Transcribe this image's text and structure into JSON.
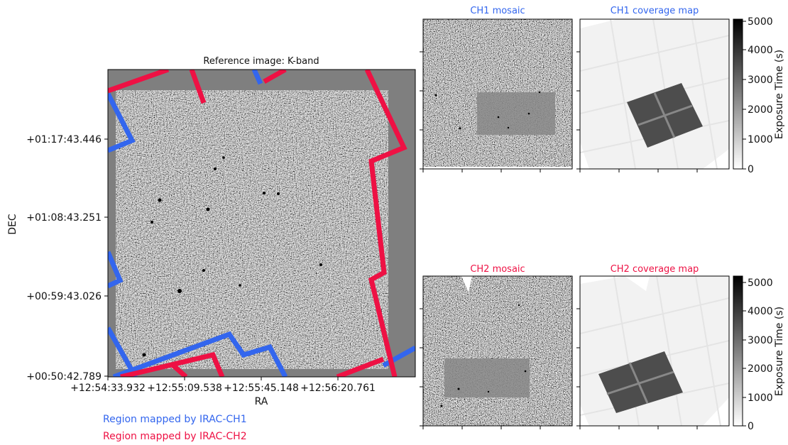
{
  "colors": {
    "ch1": "#3366ee",
    "ch2": "#ee1144",
    "panel_bg": "#7f7f7f",
    "coverage_bg": "#ffffff"
  },
  "legend": {
    "ch1": "Region mapped by IRAC-CH1",
    "ch2": "Region mapped by IRAC-CH2"
  },
  "chart_data": [
    {
      "type": "heatmap",
      "title": "Reference image: K-band",
      "xlabel": "RA",
      "ylabel": "DEC",
      "x_ticks": [
        "+12:54:33.932",
        "+12:55:09.538",
        "+12:55:45.148",
        "+12:56:20.761"
      ],
      "y_ticks": [
        "+01:17:43.446",
        "+01:08:43.251",
        "+00:59:43.026",
        "+00:50:42.789"
      ],
      "colormap": "gray",
      "overlays": [
        {
          "name": "Region mapped by IRAC-CH1",
          "color": "#3366ee"
        },
        {
          "name": "Region mapped by IRAC-CH2",
          "color": "#ee1144"
        }
      ]
    },
    {
      "type": "heatmap",
      "title": "CH1 mosaic",
      "title_color": "#3366ee",
      "colormap": "gray"
    },
    {
      "type": "heatmap",
      "title": "CH1 coverage map",
      "title_color": "#3366ee",
      "colormap": "gray_r",
      "colorbar": {
        "label": "Exposure Time (s)",
        "range": [
          0,
          5000
        ],
        "ticks": [
          "0",
          "1000",
          "2000",
          "3000",
          "4000",
          "5000"
        ]
      }
    },
    {
      "type": "heatmap",
      "title": "CH2 mosaic",
      "title_color": "#ee1144",
      "colormap": "gray"
    },
    {
      "type": "heatmap",
      "title": "CH2 coverage map",
      "title_color": "#ee1144",
      "colormap": "gray_r",
      "colorbar": {
        "label": "Exposure Time (s)",
        "range": [
          0,
          5200
        ],
        "ticks": [
          "0",
          "1000",
          "2000",
          "3000",
          "4000",
          "5000"
        ]
      }
    }
  ]
}
